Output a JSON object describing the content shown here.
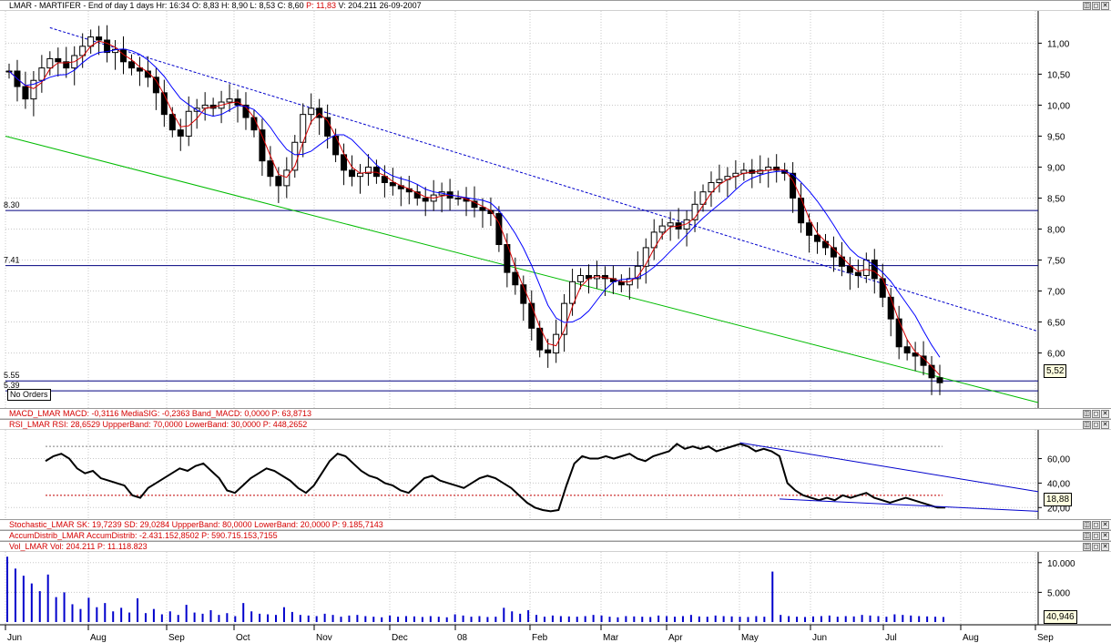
{
  "header": {
    "title": "LMAR - MARTIFER - End of day 1 days",
    "hr": "Hr: 16:34",
    "open": "O: 8,83",
    "high": "H: 8,90",
    "low": "L: 8,53",
    "close": "C: 8,60",
    "p": "P: 11,83",
    "vol": "V: 204.211",
    "date": "26-09-2007"
  },
  "window_buttons": [
    "◫",
    "◻",
    "✕"
  ],
  "no_orders": "No Orders",
  "indicators": {
    "macd": "MACD_LMAR MACD: -0,3116 MediaSIG: -0,2363 Band_MACD: 0,0000 P: 63,8713",
    "rsi": "RSI_LMAR RSI: 28,6529 UppperBand: 70,0000 LowerBand: 30,0000 P: 448,2652",
    "stoch": "Stochastic_LMAR SK: 19,7239 SD: 29,0284 UppperBand: 80,0000 LowerBand: 20,0000 P: 9.185,7143",
    "accum": "AccumDistrib_LMAR AccumDistrib: -2.431.152,8502 P: 590.715.153,7155",
    "vol": "Vol_LMAR Vol: 204.211 P: 11.118.823"
  },
  "colors": {
    "candle": "#000000",
    "ma_fast": "#d40000",
    "ma_slow": "#0000ff",
    "trend_upper": "#0000cc",
    "trend_lower": "#00bb00",
    "hline": "#000080",
    "rsi": "#000000",
    "band": "#c00000",
    "vol": "#0000cc"
  },
  "chart_data": [
    {
      "type": "candlestick",
      "title": "LMAR - MARTIFER",
      "yticks": [
        "11,00",
        "10,50",
        "10,00",
        "9,50",
        "9,00",
        "8,50",
        "8,00",
        "7,50",
        "7,00",
        "6,50",
        "6,00"
      ],
      "ylim": [
        5.2,
        11.3
      ],
      "xticks": [
        "Jun",
        "Aug",
        "Sep",
        "Oct",
        "Nov",
        "Dec",
        "08",
        "Feb",
        "Mar",
        "Apr",
        "May",
        "Jun",
        "Jul",
        "Aug",
        "Sep"
      ],
      "horizontal_levels": [
        {
          "label": "8.30",
          "value": 8.3
        },
        {
          "label": "7.41",
          "value": 7.41
        },
        {
          "label": "5.55",
          "value": 5.55
        },
        {
          "label": "5.39",
          "value": 5.39
        }
      ],
      "last_value": "5,52",
      "close_series": [
        10.55,
        10.3,
        10.1,
        10.4,
        10.6,
        10.75,
        10.7,
        10.6,
        10.8,
        10.95,
        11.1,
        11.05,
        10.85,
        10.9,
        10.7,
        10.6,
        10.55,
        10.45,
        10.2,
        9.85,
        9.6,
        9.5,
        9.9,
        9.95,
        10.0,
        9.95,
        10.05,
        10.1,
        10.0,
        9.8,
        9.6,
        9.1,
        8.85,
        8.7,
        8.95,
        9.4,
        9.85,
        9.95,
        9.8,
        9.5,
        9.2,
        8.95,
        8.85,
        8.9,
        9.0,
        8.85,
        8.75,
        8.7,
        8.65,
        8.6,
        8.5,
        8.45,
        8.55,
        8.6,
        8.5,
        8.5,
        8.45,
        8.35,
        8.3,
        8.25,
        7.75,
        7.3,
        7.1,
        6.8,
        6.4,
        6.05,
        6.0,
        6.3,
        6.8,
        7.15,
        7.25,
        7.2,
        7.25,
        7.2,
        7.15,
        7.1,
        7.2,
        7.4,
        7.7,
        7.95,
        8.05,
        8.1,
        8.0,
        8.15,
        8.4,
        8.6,
        8.75,
        8.8,
        8.85,
        8.9,
        8.95,
        8.9,
        8.95,
        9.0,
        8.95,
        8.9,
        8.5,
        8.1,
        7.9,
        7.8,
        7.7,
        7.55,
        7.4,
        7.3,
        7.25,
        7.5,
        7.2,
        6.9,
        6.55,
        6.1,
        6.0,
        5.95,
        5.8,
        5.6,
        5.52
      ]
    },
    {
      "type": "line",
      "title": "RSI_LMAR",
      "yticks": [
        "60,00",
        "40,00",
        "20,00"
      ],
      "ylim": [
        15,
        82
      ],
      "upper_band": 70,
      "lower_band": 30,
      "last_value": "18,88",
      "values": [
        58,
        62,
        64,
        60,
        52,
        48,
        50,
        44,
        42,
        40,
        38,
        30,
        28,
        36,
        40,
        44,
        48,
        52,
        50,
        54,
        56,
        50,
        44,
        34,
        32,
        38,
        44,
        48,
        52,
        50,
        46,
        42,
        36,
        32,
        38,
        48,
        58,
        64,
        62,
        56,
        50,
        46,
        44,
        40,
        38,
        34,
        32,
        38,
        44,
        46,
        42,
        40,
        38,
        36,
        40,
        44,
        46,
        44,
        40,
        36,
        30,
        24,
        20,
        18,
        17,
        18,
        38,
        56,
        62,
        60,
        60,
        62,
        60,
        62,
        64,
        60,
        58,
        62,
        64,
        66,
        72,
        68,
        70,
        68,
        70,
        66,
        68,
        70,
        72,
        70,
        66,
        68,
        66,
        62,
        40,
        34,
        30,
        28,
        26,
        28,
        26,
        30,
        28,
        30,
        32,
        28,
        26,
        24,
        26,
        28,
        26,
        24,
        22,
        20,
        20
      ]
    },
    {
      "type": "bar",
      "title": "Vol_LMAR",
      "yticks": [
        "10.000",
        "5.000"
      ],
      "ylim": [
        0,
        11500
      ],
      "last_value": "40,946",
      "values": [
        11000,
        9000,
        7800,
        6500,
        5200,
        8000,
        4200,
        5000,
        3000,
        2200,
        4100,
        2500,
        3200,
        1800,
        2400,
        1600,
        4000,
        1500,
        2200,
        1300,
        1800,
        1200,
        2900,
        1600,
        1400,
        2000,
        1200,
        1500,
        1000,
        3200,
        1800,
        1400,
        1300,
        1200,
        2500,
        1700,
        1200,
        1100,
        1000,
        1400,
        1200,
        900,
        1100,
        1200,
        1000,
        900,
        800,
        1100,
        900,
        1000,
        950,
        850,
        1000,
        900,
        800,
        1300,
        1100,
        900,
        1000,
        850,
        900,
        2400,
        1800,
        1400,
        2000,
        1200,
        900,
        1100,
        1000,
        950,
        900,
        1000,
        1200,
        1100,
        900,
        800,
        1000,
        950,
        900,
        850,
        1100,
        1000,
        900,
        1000,
        1200,
        950,
        900,
        1100,
        1000,
        950,
        900,
        850,
        1000,
        900,
        8500,
        1200,
        1000,
        900,
        850,
        950,
        1000,
        1100,
        900,
        1000,
        950,
        1200,
        1100,
        1000,
        900,
        1300,
        1200,
        1100,
        1000,
        950,
        900,
        850
      ]
    }
  ]
}
